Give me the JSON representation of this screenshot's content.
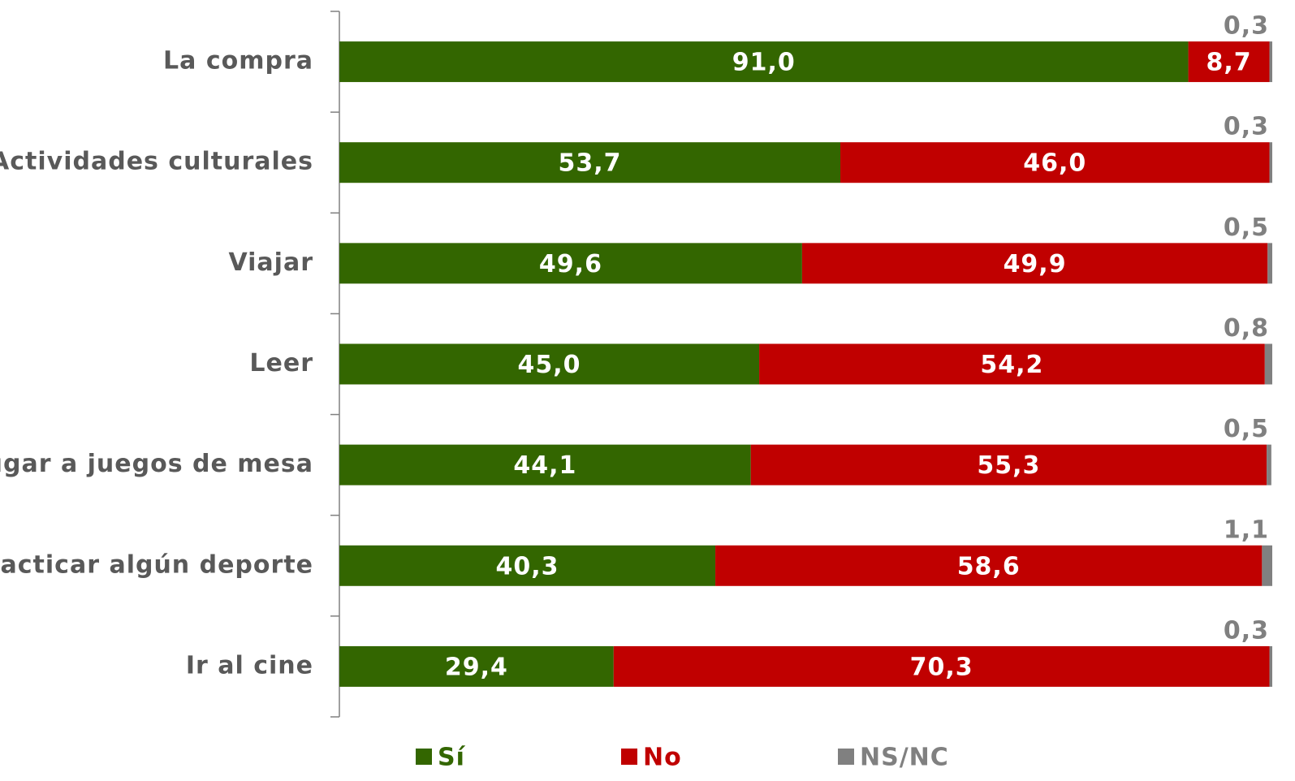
{
  "chart_data": {
    "type": "stacked-bar-horizontal",
    "categories": [
      "La compra",
      "Actividades culturales",
      "Viajar",
      "Leer",
      "Jugar a juegos de mesa",
      "Practicar algún deporte",
      "Ir al cine"
    ],
    "series": [
      {
        "name": "Sí",
        "color": "#336600",
        "values": [
          91.0,
          53.7,
          49.6,
          45.0,
          44.1,
          40.3,
          29.4
        ],
        "value_labels": [
          "91,0",
          "53,7",
          "49,6",
          "45,0",
          "44,1",
          "40,3",
          "29,4"
        ]
      },
      {
        "name": "No",
        "color": "#c00000",
        "values": [
          8.7,
          46.0,
          49.9,
          54.2,
          55.3,
          58.6,
          70.3
        ],
        "value_labels": [
          "8,7",
          "46,0",
          "49,9",
          "54,2",
          "55,3",
          "58,6",
          "70,3"
        ]
      },
      {
        "name": "NS/NC",
        "color": "#808080",
        "values": [
          0.3,
          0.3,
          0.5,
          0.8,
          0.5,
          1.1,
          0.3
        ],
        "value_labels": [
          "0,3",
          "0,3",
          "0,5",
          "0,8",
          "0,5",
          "1,1",
          "0,3"
        ]
      }
    ]
  }
}
